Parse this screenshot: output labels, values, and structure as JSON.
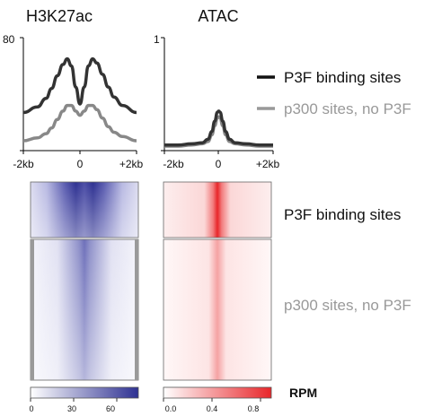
{
  "chart_data": [
    {
      "type": "line",
      "title": "H3K27ac",
      "xlabel": "",
      "ylabel": "",
      "xlim": [
        -2,
        2
      ],
      "ylim": [
        0,
        80
      ],
      "x_tick_labels": [
        "-2kb",
        "0",
        "+2kb"
      ],
      "y_tick_labels": [
        "80"
      ],
      "x": [
        -2.0,
        -1.5,
        -1.2,
        -1.0,
        -0.8,
        -0.6,
        -0.45,
        -0.3,
        -0.15,
        0.0,
        0.15,
        0.3,
        0.45,
        0.6,
        0.8,
        1.0,
        1.2,
        1.5,
        2.0
      ],
      "series": [
        {
          "name": "P3F binding sites",
          "color": "#333333",
          "values": [
            27,
            31,
            37,
            44,
            53,
            61,
            65,
            60,
            45,
            33,
            45,
            60,
            65,
            62,
            54,
            45,
            38,
            32,
            27
          ]
        },
        {
          "name": "p300 sites, no P3F",
          "color": "#888888",
          "values": [
            7,
            9,
            12,
            16,
            22,
            28,
            32,
            32,
            28,
            25,
            28,
            32,
            32,
            29,
            23,
            17,
            13,
            10,
            7
          ]
        }
      ]
    },
    {
      "type": "line",
      "title": "ATAC",
      "xlabel": "",
      "ylabel": "",
      "xlim": [
        -2,
        2
      ],
      "ylim": [
        0,
        1
      ],
      "x_tick_labels": [
        "-2kb",
        "0",
        "+2kb"
      ],
      "y_tick_labels": [
        "1"
      ],
      "x": [
        -2.0,
        -1.5,
        -1.0,
        -0.6,
        -0.4,
        -0.25,
        -0.15,
        -0.05,
        0.0,
        0.05,
        0.15,
        0.25,
        0.4,
        0.6,
        1.0,
        1.5,
        2.0
      ],
      "series": [
        {
          "name": "P3F binding sites",
          "color": "#333333",
          "values": [
            0.05,
            0.05,
            0.06,
            0.07,
            0.1,
            0.17,
            0.26,
            0.34,
            0.35,
            0.34,
            0.26,
            0.17,
            0.1,
            0.07,
            0.06,
            0.05,
            0.05
          ]
        },
        {
          "name": "p300 sites, no P3F",
          "color": "#888888",
          "values": [
            0.04,
            0.04,
            0.05,
            0.06,
            0.08,
            0.14,
            0.22,
            0.29,
            0.3,
            0.29,
            0.22,
            0.14,
            0.08,
            0.06,
            0.05,
            0.04,
            0.04
          ]
        }
      ]
    },
    {
      "type": "heatmap",
      "title": "H3K27ac",
      "colormap": [
        "#ffffff",
        "#2e3192"
      ],
      "colorbar_ticks": [
        0,
        30,
        60
      ],
      "colorbar_max": 75,
      "groups": [
        "P3F binding sites",
        "p300 sites, no P3F"
      ]
    },
    {
      "type": "heatmap",
      "title": "ATAC",
      "colormap": [
        "#ffffff",
        "#e8262a"
      ],
      "colorbar_ticks": [
        "0.0",
        "0.4",
        "0.8"
      ],
      "colorbar_max": 1.0,
      "groups": [
        "P3F binding sites",
        "p300 sites, no P3F"
      ]
    }
  ],
  "legend": {
    "items": [
      {
        "label": "P3F binding sites",
        "color": "#111111"
      },
      {
        "label": "p300 sites, no P3F",
        "color": "#999999"
      }
    ]
  },
  "heatmap_labels": {
    "group1": "P3F binding sites",
    "group2": "p300 sites, no P3F",
    "colorbar_unit": "RPM"
  }
}
